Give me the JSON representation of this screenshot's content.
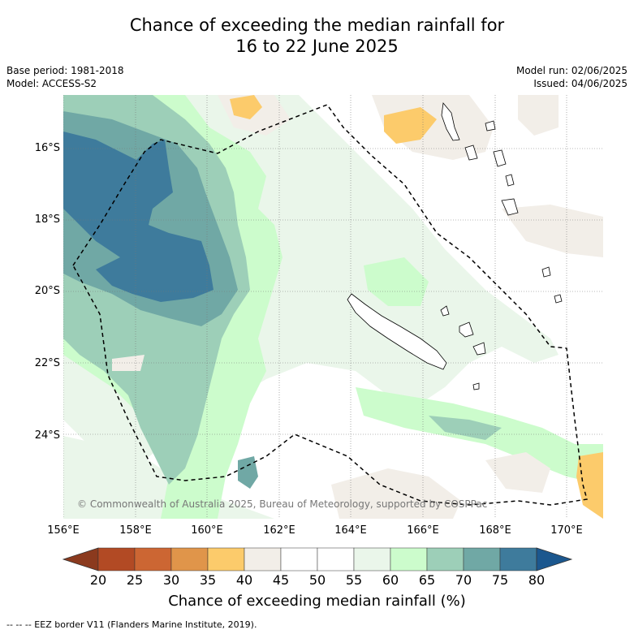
{
  "title": {
    "line1": "Chance of exceeding the median rainfall for",
    "line2": "16 to 22 June 2025"
  },
  "meta": {
    "base_period": "Base period: 1981-2018",
    "model": "Model: ACCESS-S2",
    "model_run": "Model run: 02/06/2025",
    "issued": "Issued: 04/06/2025"
  },
  "map": {
    "lat_ticks": [
      "16°S",
      "18°S",
      "20°S",
      "22°S",
      "24°S"
    ],
    "lon_ticks": [
      "156°E",
      "158°E",
      "160°E",
      "162°E",
      "164°E",
      "166°E",
      "168°E",
      "170°E"
    ],
    "copyright": "© Commonwealth of Australia 2025, Bureau of Meteorology, supported by COSPPac",
    "colors": {
      "c20_25": "#b24a24",
      "c25_30": "#cc6633",
      "c30_35": "#e0954a",
      "c35_40": "#fccb6b",
      "c40_45": "#f2eee8",
      "c45_55": "#ffffff",
      "c55_60": "#eaf6ea",
      "c60_65": "#ccfccc",
      "c65_70": "#9dcfb8",
      "c70_75": "#70a8a5",
      "c75_80": "#3e7b9c",
      "c80_up": "#1b578e"
    }
  },
  "colorbar": {
    "ticks": [
      "20",
      "25",
      "30",
      "35",
      "40",
      "45",
      "50",
      "55",
      "60",
      "65",
      "70",
      "75",
      "80"
    ],
    "label": "Chance of exceeding median rainfall (%)"
  },
  "footnote": "--  --  -- EEZ border V11 (Flanders Marine Institute, 2019)."
}
